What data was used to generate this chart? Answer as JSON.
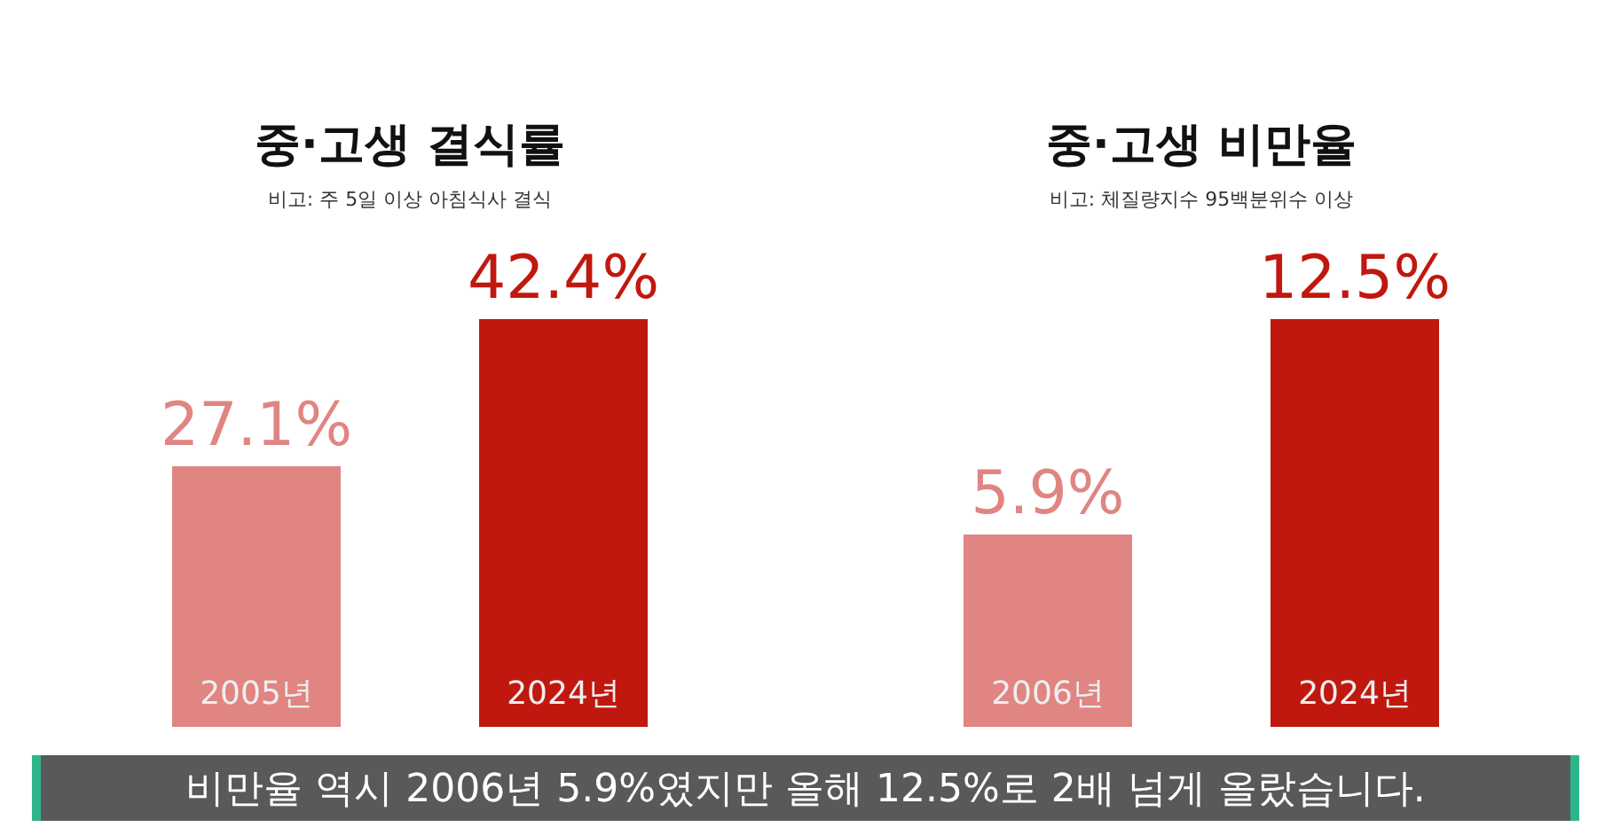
{
  "chart_data": [
    {
      "type": "bar",
      "title": "중·고생 결식률",
      "subtitle": "비고: 주 5일 이상 아침식사 결식",
      "categories": [
        "2005년",
        "2024년"
      ],
      "values": [
        27.1,
        42.4
      ],
      "value_labels": [
        "27.1%",
        "42.4%"
      ],
      "colors": [
        "#e08582",
        "#c0180f"
      ],
      "tick_labels": "x"
    },
    {
      "type": "bar",
      "title": "중·고생 비만율",
      "subtitle": "비고: 체질량지수 95백분위수 이상",
      "categories": [
        "2006년",
        "2024년"
      ],
      "values": [
        5.9,
        12.5
      ],
      "value_labels": [
        "5.9%",
        "12.5%"
      ],
      "colors": [
        "#e08582",
        "#c0180f"
      ],
      "tick_labels": "x",
      "annotations": [
        "비만율 역시 2006년 5.9%였지만 올해 12.5%로 2배 넘게 올랐습니다."
      ]
    }
  ]
}
